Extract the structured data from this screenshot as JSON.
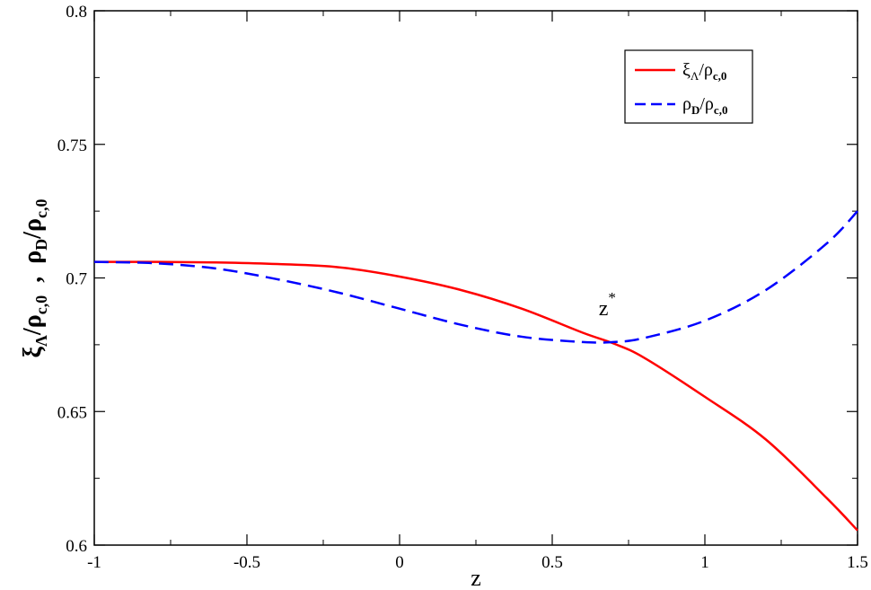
{
  "chart_data": {
    "type": "line",
    "title": "",
    "xlabel": "z",
    "ylabel": {
      "part1_main": "ξ",
      "part1_sub": "Λ",
      "part1_den": "/ρ",
      "part1_den_sub": "c,0",
      "separator": ",",
      "part2_main": "ρ",
      "part2_sub": "D",
      "part2_den": "/ρ",
      "part2_den_sub": "c,0"
    },
    "xlim": [
      -1,
      1.5
    ],
    "ylim": [
      0.6,
      0.8
    ],
    "xticks": [
      "-1",
      "-0.5",
      "0",
      "0.5",
      "1",
      "1.5"
    ],
    "yticks": [
      "0.6",
      "0.65",
      "0.7",
      "0.75",
      "0.8"
    ],
    "grid": false,
    "legend_position": "top-right",
    "series": [
      {
        "name": "ξΛ/ρc,0",
        "legend": {
          "main": "ξ",
          "sub": "Λ",
          "den": "/ρ",
          "den_sub": "c,0"
        },
        "color": "#ff0000",
        "style": "solid",
        "x": [
          -1,
          -0.8,
          -0.6,
          -0.4,
          -0.2,
          0,
          0.2,
          0.4,
          0.6,
          0.7,
          0.8,
          1.0,
          1.2,
          1.4,
          1.5
        ],
        "y": [
          0.706,
          0.706,
          0.7058,
          0.7052,
          0.704,
          0.7005,
          0.6955,
          0.6885,
          0.6795,
          0.6755,
          0.6702,
          0.6555,
          0.6395,
          0.6175,
          0.6055
        ]
      },
      {
        "name": "ρD/ρc,0",
        "legend": {
          "main": "ρ",
          "sub": "D",
          "den": "/ρ",
          "den_sub": "c,0"
        },
        "color": "#0000ff",
        "style": "dashed",
        "x": [
          -1,
          -0.8,
          -0.6,
          -0.4,
          -0.2,
          0,
          0.2,
          0.4,
          0.6,
          0.7,
          0.8,
          1.0,
          1.2,
          1.4,
          1.5
        ],
        "y": [
          0.706,
          0.7055,
          0.7035,
          0.6995,
          0.6945,
          0.6885,
          0.6825,
          0.678,
          0.676,
          0.676,
          0.6775,
          0.684,
          0.6955,
          0.713,
          0.725
        ]
      }
    ],
    "annotations": [
      {
        "text": "z",
        "superscript": "*",
        "x": 0.705,
        "y": 0.686
      }
    ]
  }
}
